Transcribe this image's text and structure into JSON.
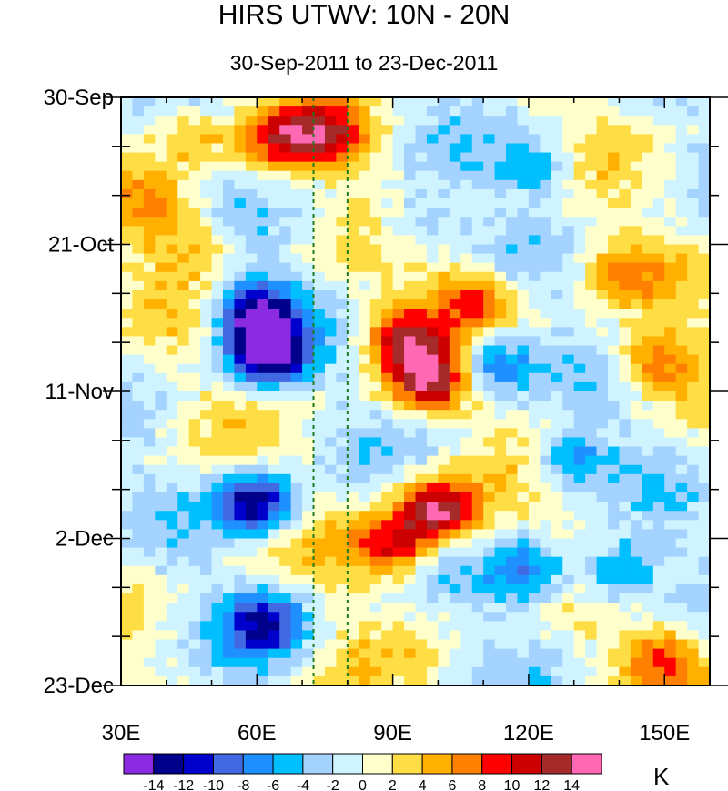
{
  "chart_data": {
    "type": "heatmap",
    "title": "HIRS UTWV: 10N - 20N",
    "subtitle": "30-Sep-2011 to 23-Dec-2011",
    "x_range": [
      30,
      160
    ],
    "x_ticks": [
      30,
      60,
      90,
      120,
      150
    ],
    "x_tick_labels": [
      "30E",
      "60E",
      "90E",
      "120E",
      "150E"
    ],
    "y_tick_labels": [
      "30-Sep",
      "21-Oct",
      "11-Nov",
      "2-Dec",
      "23-Dec"
    ],
    "y_tick_days": [
      0,
      21,
      42,
      63,
      84
    ],
    "y_range_days": [
      0,
      84
    ],
    "reference_lines_lon": [
      72.5,
      80
    ],
    "colorbar": {
      "unit": "K",
      "levels": [
        -14,
        -12,
        -10,
        -8,
        -6,
        -4,
        -2,
        0,
        2,
        4,
        6,
        8,
        10,
        12,
        14
      ],
      "tick_labels": [
        "-14",
        "-12",
        "-10",
        "-8",
        "-6",
        "-4",
        "-2",
        "0",
        "2",
        "4",
        "6",
        "8",
        "10",
        "12",
        "14"
      ],
      "colors": [
        "#8a2be2",
        "#00008b",
        "#0000cd",
        "#4169e1",
        "#1e90ff",
        "#00bfff",
        "#a4d3ff",
        "#d0f4ff",
        "#ffffcc",
        "#ffdd44",
        "#ffb000",
        "#ff7f00",
        "#ff0000",
        "#cc0000",
        "#a52a2a",
        "#ff69b4"
      ]
    },
    "anomaly_features": [
      {
        "lon": 65,
        "day": 6,
        "value": 9
      },
      {
        "lon": 76,
        "day": 5,
        "value": 8
      },
      {
        "lon": 45,
        "day": 5,
        "value": 6
      },
      {
        "lon": 38,
        "day": 15,
        "value": 4
      },
      {
        "lon": 45,
        "day": 21,
        "value": 5
      },
      {
        "lon": 60,
        "day": 31,
        "value": -15
      },
      {
        "lon": 62,
        "day": 37,
        "value": -14
      },
      {
        "lon": 98,
        "day": 40,
        "value": 14
      },
      {
        "lon": 92,
        "day": 34,
        "value": 10
      },
      {
        "lon": 108,
        "day": 29,
        "value": 9
      },
      {
        "lon": 112,
        "day": 38,
        "value": -10
      },
      {
        "lon": 100,
        "day": 59,
        "value": 15
      },
      {
        "lon": 90,
        "day": 64,
        "value": 10
      },
      {
        "lon": 60,
        "day": 58,
        "value": -14
      },
      {
        "lon": 62,
        "day": 75,
        "value": -11
      },
      {
        "lon": 140,
        "day": 68,
        "value": -9
      },
      {
        "lon": 120,
        "day": 68,
        "value": -8
      },
      {
        "lon": 150,
        "day": 80,
        "value": 7
      },
      {
        "lon": 148,
        "day": 38,
        "value": 8
      },
      {
        "lon": 130,
        "day": 52,
        "value": -8
      },
      {
        "lon": 122,
        "day": 10,
        "value": -6
      },
      {
        "lon": 95,
        "day": 18,
        "value": -5
      },
      {
        "lon": 140,
        "day": 25,
        "value": 5
      }
    ]
  }
}
